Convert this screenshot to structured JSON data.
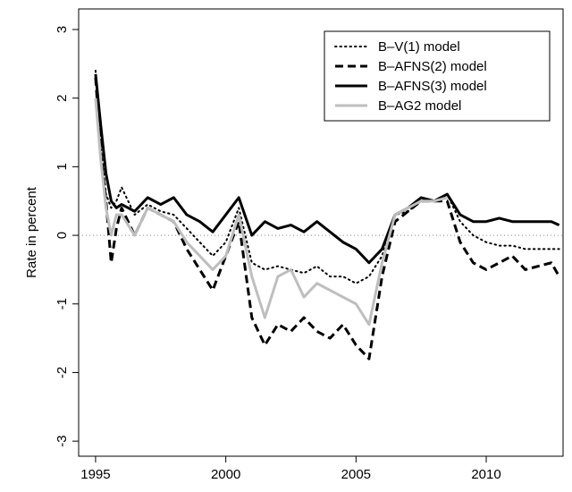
{
  "chart_data": {
    "type": "line",
    "y_label": "Rate in percent",
    "x": [
      1995.0,
      1995.2,
      1995.4,
      1995.6,
      1995.8,
      1996.0,
      1996.5,
      1997,
      1997.5,
      1998,
      1998.5,
      1999,
      1999.5,
      2000,
      2000.5,
      2001,
      2001.5,
      2002,
      2002.5,
      2003,
      2003.5,
      2004,
      2004.5,
      2005,
      2005.5,
      2006,
      2006.5,
      2007,
      2007.5,
      2008,
      2008.5,
      2009,
      2009.5,
      2010,
      2010.5,
      2011,
      2011.5,
      2012,
      2012.5,
      2012.8
    ],
    "series": [
      {
        "name": "B–V(1) model",
        "color": "#000000",
        "dash": "dotted",
        "values": [
          2.4,
          1.3,
          0.6,
          0.4,
          0.5,
          0.7,
          0.3,
          0.45,
          0.35,
          0.3,
          0.1,
          -0.1,
          -0.3,
          -0.1,
          0.4,
          -0.4,
          -0.5,
          -0.45,
          -0.5,
          -0.55,
          -0.45,
          -0.6,
          -0.6,
          -0.7,
          -0.6,
          -0.3,
          0.3,
          0.35,
          0.5,
          0.5,
          0.6,
          0.2,
          0.0,
          -0.1,
          -0.15,
          -0.15,
          -0.2,
          -0.2,
          -0.2,
          -0.2
        ]
      },
      {
        "name": "B–AFNS(2) model",
        "color": "#000000",
        "dash": "dashed",
        "values": [
          2.3,
          1.2,
          0.5,
          -0.4,
          0.1,
          0.4,
          0.0,
          0.4,
          0.3,
          0.2,
          -0.2,
          -0.5,
          -0.8,
          -0.3,
          0.2,
          -1.2,
          -1.6,
          -1.3,
          -1.4,
          -1.2,
          -1.4,
          -1.5,
          -1.3,
          -1.6,
          -1.8,
          -0.6,
          0.2,
          0.35,
          0.5,
          0.5,
          0.5,
          -0.1,
          -0.4,
          -0.5,
          -0.4,
          -0.3,
          -0.5,
          -0.45,
          -0.4,
          -0.6
        ]
      },
      {
        "name": "B–AFNS(3) model",
        "color": "#000000",
        "dash": "solid",
        "values": [
          2.35,
          1.6,
          0.9,
          0.5,
          0.4,
          0.45,
          0.35,
          0.55,
          0.45,
          0.55,
          0.3,
          0.2,
          0.05,
          0.3,
          0.55,
          0.0,
          0.2,
          0.1,
          0.15,
          0.05,
          0.2,
          0.05,
          -0.1,
          -0.2,
          -0.4,
          -0.2,
          0.3,
          0.4,
          0.55,
          0.5,
          0.6,
          0.3,
          0.2,
          0.2,
          0.25,
          0.2,
          0.2,
          0.2,
          0.2,
          0.15
        ]
      },
      {
        "name": "B–AG2 model",
        "color": "#bebebe",
        "dash": "solid",
        "values": [
          2.0,
          1.1,
          0.4,
          0.0,
          0.3,
          0.3,
          0.0,
          0.4,
          0.3,
          0.2,
          -0.1,
          -0.3,
          -0.5,
          -0.3,
          0.3,
          -0.6,
          -1.2,
          -0.6,
          -0.5,
          -0.9,
          -0.7,
          -0.8,
          -0.9,
          -1.0,
          -1.3,
          -0.4,
          0.3,
          0.4,
          0.5,
          0.5,
          0.55,
          null,
          null,
          null,
          null,
          null,
          null,
          null,
          null,
          null
        ]
      }
    ],
    "xlim": [
      1994.35,
      2012.95
    ],
    "ylim": [
      -3.22,
      3.3
    ],
    "xticks": [
      1995,
      2000,
      2005,
      2010
    ],
    "yticks": [
      -3,
      -2,
      -1,
      0,
      1,
      2,
      3
    ],
    "reference_line": 0,
    "legend": "topright"
  }
}
